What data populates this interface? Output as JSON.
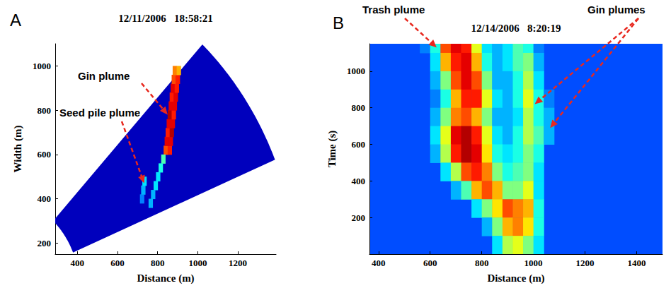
{
  "chart_data": [
    {
      "type": "heatmap",
      "panel": "A",
      "title": "12/11/2006   18:58:21",
      "x_label": "Distance (m)",
      "y_label": "Width (m)",
      "xlim": [
        290,
        1390
      ],
      "xticks": [
        400,
        600,
        800,
        1000,
        1200
      ],
      "ylim": [
        150,
        1100
      ],
      "yticks": [
        200,
        400,
        600,
        800,
        1000
      ],
      "grid": false,
      "zlim": [
        0,
        10
      ],
      "background": 0.6,
      "scan": {
        "range_lim": [
          410,
          1500
        ],
        "angle_lim": [
          22.6,
          47
        ]
      },
      "cell_size": [
        20,
        40
      ],
      "cells": [
        [
          840,
          620,
          8
        ],
        [
          860,
          620,
          8.5
        ],
        [
          845,
          660,
          9
        ],
        [
          865,
          660,
          9
        ],
        [
          850,
          700,
          8.5
        ],
        [
          870,
          700,
          9.5
        ],
        [
          855,
          740,
          9
        ],
        [
          875,
          740,
          9
        ],
        [
          860,
          780,
          9.5
        ],
        [
          880,
          780,
          8.5
        ],
        [
          865,
          820,
          9
        ],
        [
          885,
          820,
          9
        ],
        [
          870,
          860,
          8.5
        ],
        [
          890,
          860,
          9
        ],
        [
          875,
          900,
          9
        ],
        [
          895,
          900,
          8.5
        ],
        [
          880,
          940,
          8
        ],
        [
          900,
          940,
          8.5
        ],
        [
          885,
          980,
          7.5
        ],
        [
          905,
          980,
          7
        ],
        [
          828,
          580,
          4.5
        ],
        [
          815,
          540,
          4
        ],
        [
          802,
          500,
          3.5
        ],
        [
          790,
          460,
          3.5
        ],
        [
          777,
          420,
          3
        ],
        [
          765,
          380,
          3
        ],
        [
          722,
          400,
          2.5
        ],
        [
          728,
          440,
          3
        ],
        [
          734,
          480,
          3.5
        ]
      ],
      "annotations": [
        {
          "text": "Gin plume",
          "targets": [
            [
              850,
              780
            ]
          ]
        },
        {
          "text": "Seed pile plume",
          "targets": [
            [
              733,
              470
            ]
          ]
        }
      ]
    },
    {
      "type": "heatmap",
      "panel": "B",
      "title": "12/14/2006   8:20:19",
      "x_label": "Distance (m)",
      "y_label": "Time (s)",
      "xlim": [
        365,
        1500
      ],
      "xticks": [
        400,
        600,
        800,
        1000,
        1200,
        1400
      ],
      "ylim": [
        0,
        1150
      ],
      "yticks": [
        200,
        400,
        600,
        800,
        1000
      ],
      "grid": false,
      "zlim": [
        0,
        10
      ],
      "background": 2,
      "cell_size": [
        40,
        100
      ],
      "cells": [
        [
          580,
          1150,
          2.5
        ],
        [
          620,
          1150,
          4
        ],
        [
          660,
          1150,
          8
        ],
        [
          700,
          1150,
          9
        ],
        [
          740,
          1150,
          8.5
        ],
        [
          780,
          1150,
          6
        ],
        [
          820,
          1150,
          3.5
        ],
        [
          860,
          1150,
          3
        ],
        [
          900,
          1150,
          3.5
        ],
        [
          940,
          1150,
          4.5
        ],
        [
          980,
          1150,
          4
        ],
        [
          1020,
          1150,
          2.5
        ],
        [
          620,
          1050,
          3.5
        ],
        [
          660,
          1050,
          7
        ],
        [
          700,
          1050,
          8.5
        ],
        [
          740,
          1050,
          9
        ],
        [
          780,
          1050,
          7
        ],
        [
          820,
          1050,
          4
        ],
        [
          860,
          1050,
          3
        ],
        [
          900,
          1050,
          3.5
        ],
        [
          940,
          1050,
          4.5
        ],
        [
          980,
          1050,
          5
        ],
        [
          1020,
          1050,
          3
        ],
        [
          620,
          950,
          3
        ],
        [
          660,
          950,
          5
        ],
        [
          700,
          950,
          8
        ],
        [
          740,
          950,
          9
        ],
        [
          780,
          950,
          8
        ],
        [
          820,
          950,
          5
        ],
        [
          860,
          950,
          3
        ],
        [
          900,
          950,
          3
        ],
        [
          940,
          950,
          4
        ],
        [
          980,
          950,
          5.5
        ],
        [
          1020,
          950,
          3.5
        ],
        [
          620,
          850,
          2.5
        ],
        [
          660,
          850,
          4
        ],
        [
          700,
          850,
          7
        ],
        [
          740,
          850,
          8.5
        ],
        [
          780,
          850,
          8.5
        ],
        [
          820,
          850,
          6
        ],
        [
          860,
          850,
          3.5
        ],
        [
          900,
          850,
          3
        ],
        [
          940,
          850,
          4
        ],
        [
          980,
          850,
          6
        ],
        [
          1020,
          850,
          4
        ],
        [
          1060,
          850,
          2.5
        ],
        [
          620,
          750,
          3
        ],
        [
          660,
          750,
          5
        ],
        [
          700,
          750,
          7.5
        ],
        [
          740,
          750,
          8
        ],
        [
          780,
          750,
          7
        ],
        [
          820,
          750,
          5
        ],
        [
          860,
          750,
          3
        ],
        [
          900,
          750,
          3
        ],
        [
          940,
          750,
          3.5
        ],
        [
          980,
          750,
          5.5
        ],
        [
          1020,
          750,
          4
        ],
        [
          1060,
          750,
          3
        ],
        [
          620,
          650,
          3.5
        ],
        [
          660,
          650,
          6
        ],
        [
          700,
          650,
          9
        ],
        [
          740,
          650,
          9.5
        ],
        [
          780,
          650,
          8.5
        ],
        [
          820,
          650,
          6
        ],
        [
          860,
          650,
          3.5
        ],
        [
          900,
          650,
          3
        ],
        [
          940,
          650,
          4
        ],
        [
          980,
          650,
          5.5
        ],
        [
          1020,
          650,
          4.5
        ],
        [
          1060,
          650,
          3
        ],
        [
          620,
          550,
          3
        ],
        [
          660,
          550,
          5.5
        ],
        [
          700,
          550,
          8.5
        ],
        [
          740,
          550,
          9.5
        ],
        [
          780,
          550,
          9
        ],
        [
          820,
          550,
          6.5
        ],
        [
          860,
          550,
          4
        ],
        [
          900,
          550,
          3.5
        ],
        [
          940,
          550,
          4
        ],
        [
          980,
          550,
          5
        ],
        [
          1020,
          550,
          4
        ],
        [
          660,
          450,
          3.5
        ],
        [
          700,
          450,
          5.5
        ],
        [
          740,
          450,
          8
        ],
        [
          780,
          450,
          8.5
        ],
        [
          820,
          450,
          7.5
        ],
        [
          860,
          450,
          5
        ],
        [
          900,
          450,
          4
        ],
        [
          940,
          450,
          4.5
        ],
        [
          980,
          450,
          5
        ],
        [
          1020,
          450,
          3.5
        ],
        [
          700,
          350,
          3
        ],
        [
          740,
          350,
          4.5
        ],
        [
          780,
          350,
          7
        ],
        [
          820,
          350,
          8
        ],
        [
          860,
          350,
          7
        ],
        [
          900,
          350,
          5
        ],
        [
          940,
          350,
          5
        ],
        [
          980,
          350,
          6
        ],
        [
          1020,
          350,
          3.5
        ],
        [
          780,
          250,
          3.5
        ],
        [
          820,
          250,
          5
        ],
        [
          860,
          250,
          6.5
        ],
        [
          900,
          250,
          8
        ],
        [
          940,
          250,
          7.5
        ],
        [
          980,
          250,
          7
        ],
        [
          1020,
          250,
          4
        ],
        [
          820,
          150,
          3
        ],
        [
          860,
          150,
          5
        ],
        [
          900,
          150,
          7
        ],
        [
          940,
          150,
          7.5
        ],
        [
          980,
          150,
          6.5
        ],
        [
          1020,
          150,
          4
        ],
        [
          860,
          50,
          3.5
        ],
        [
          900,
          50,
          5.5
        ],
        [
          940,
          50,
          6
        ],
        [
          980,
          50,
          5
        ],
        [
          1020,
          50,
          3.5
        ]
      ],
      "annotations": [
        {
          "text": "Trash plume",
          "targets": [
            [
              625,
              1130
            ]
          ]
        },
        {
          "text": "Gin plumes",
          "targets": [
            [
              1005,
              820
            ],
            [
              1065,
              690
            ]
          ]
        }
      ]
    }
  ]
}
